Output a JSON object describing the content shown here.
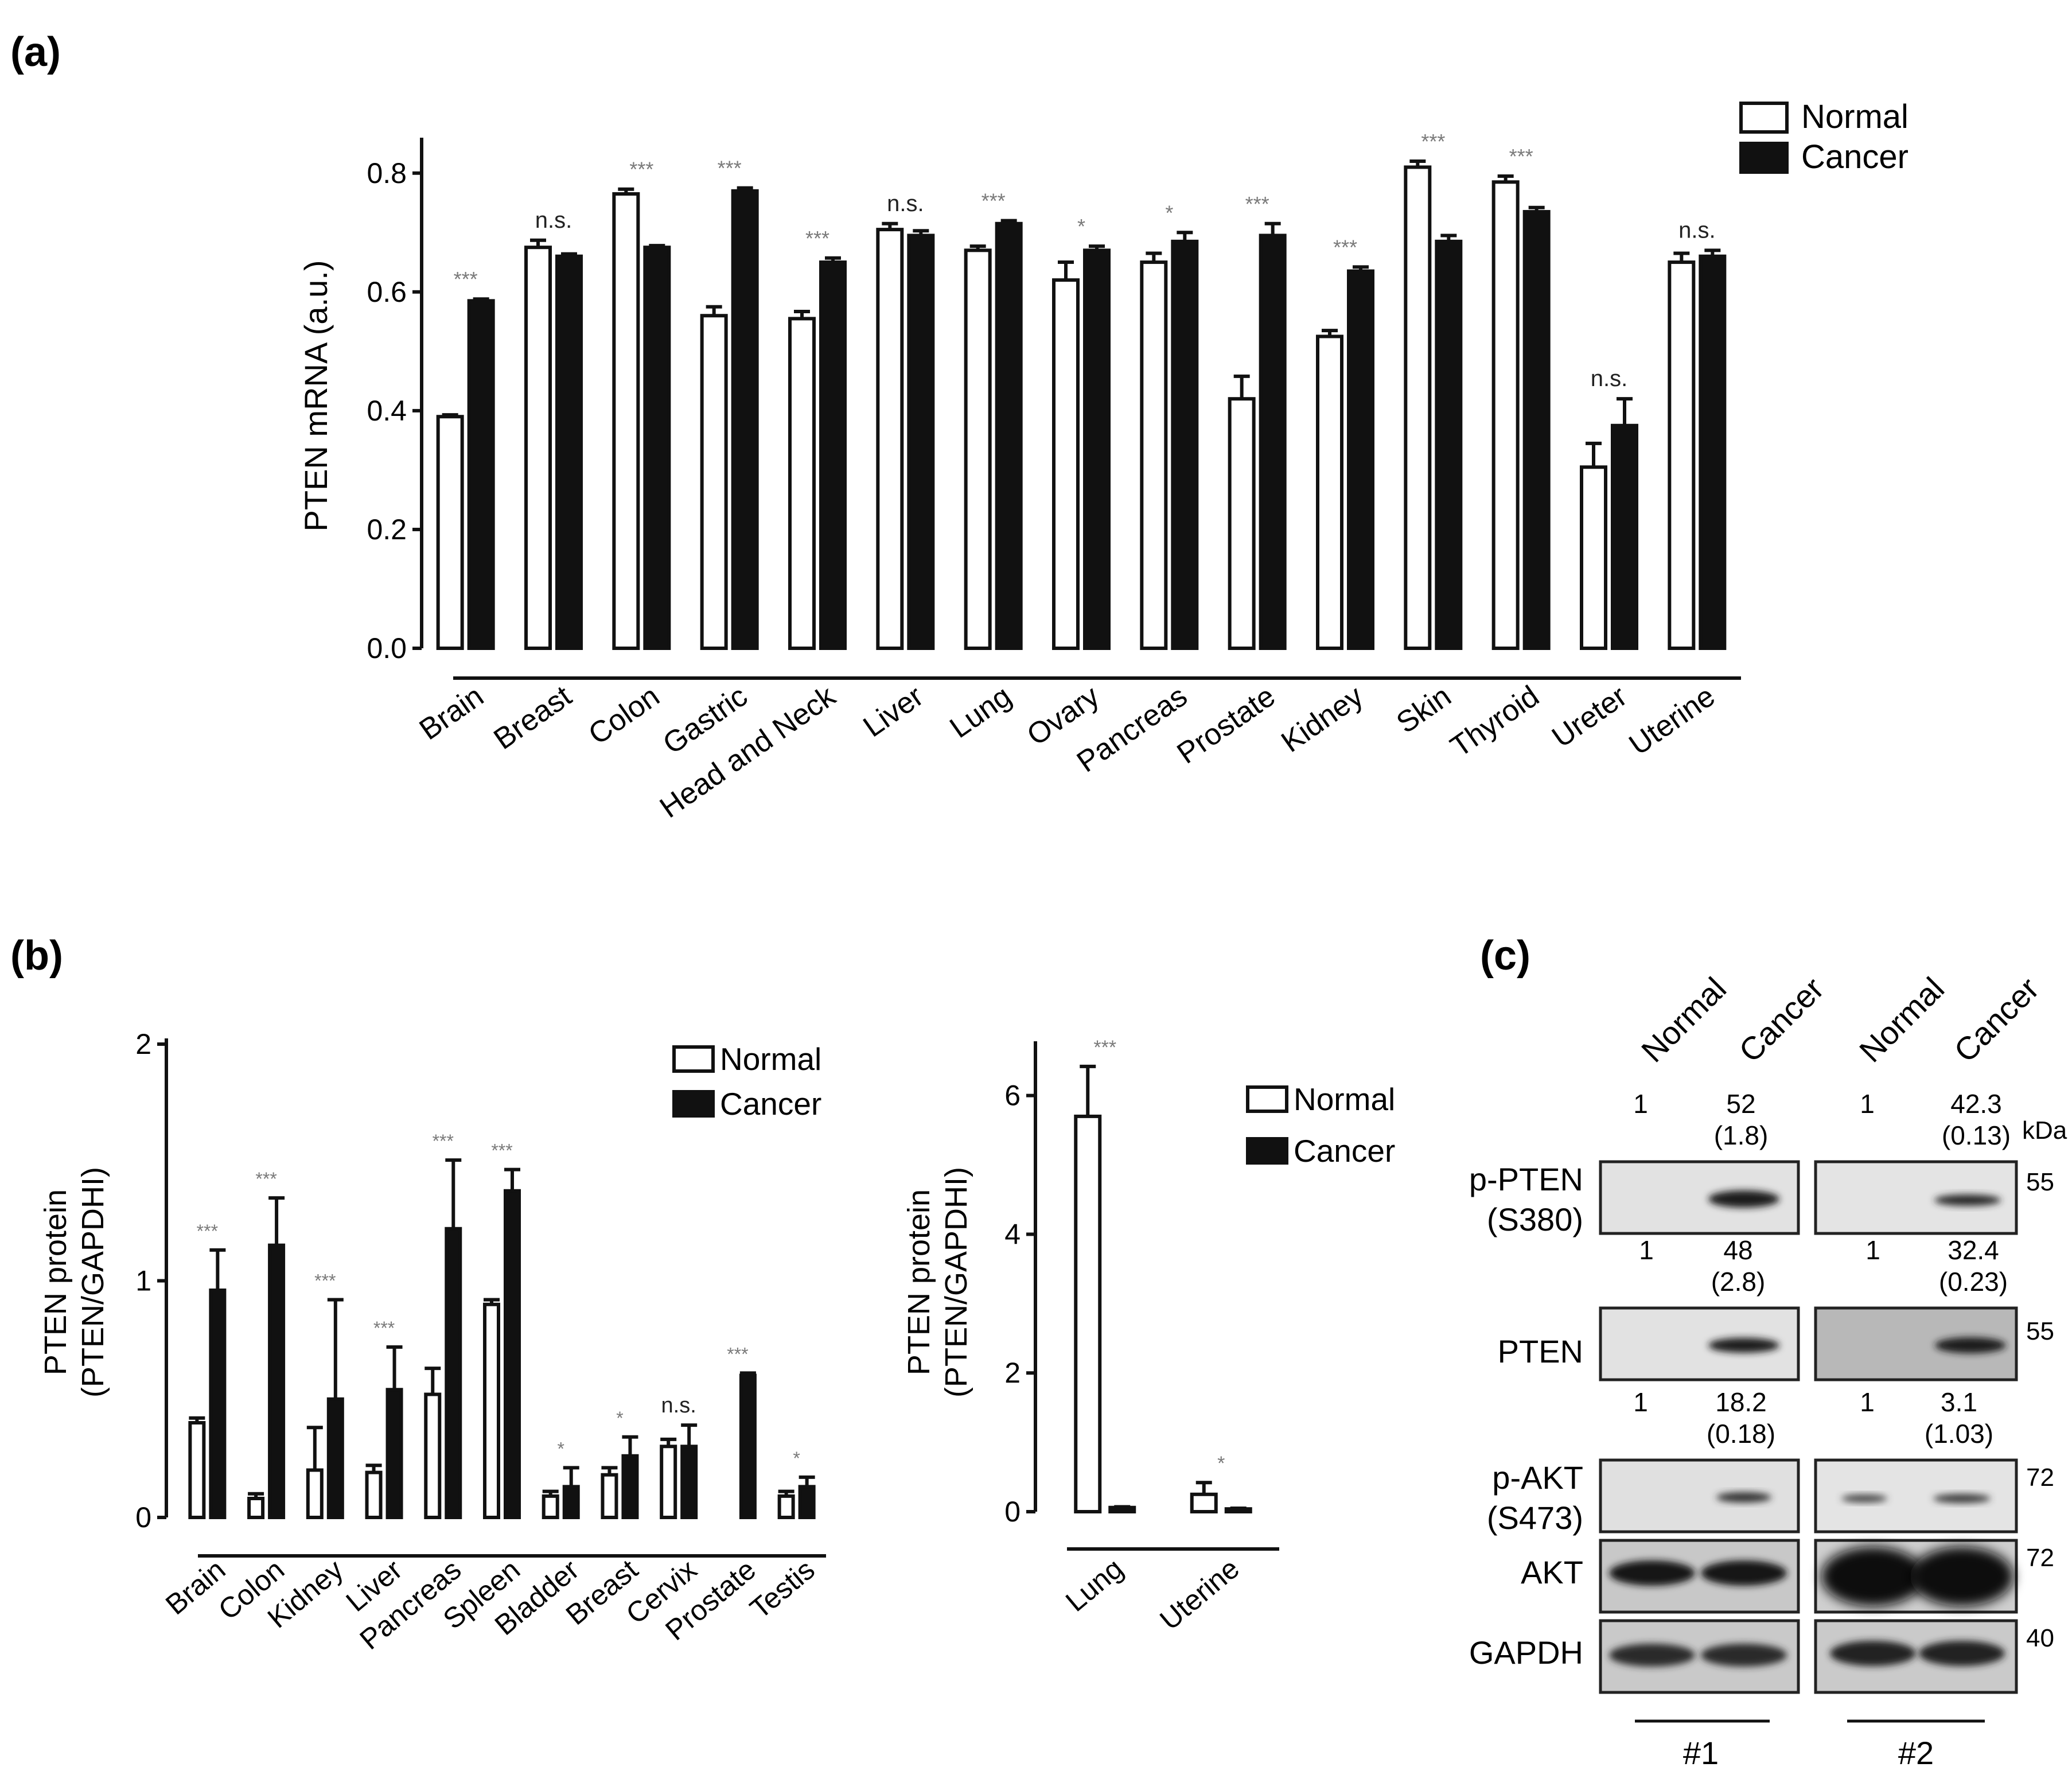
{
  "panel_labels": {
    "a": "(a)",
    "b": "(b)",
    "c": "(c)"
  },
  "legend": {
    "normal": "Normal",
    "cancer": "Cancer"
  },
  "colors": {
    "cancer": "#111111",
    "normal": "#ffffff",
    "stroke": "#111111",
    "sig": "#7a7a7a"
  },
  "chart_data": [
    {
      "id": "a",
      "type": "bar",
      "title": "",
      "xlabel": "",
      "ylabel": "PTEN mRNA (a.u.)",
      "ylim": [
        0,
        0.85
      ],
      "yticks": [
        "0.0",
        "0.2",
        "0.4",
        "0.6",
        "0.8"
      ],
      "ytick_values": [
        0,
        0.2,
        0.4,
        0.6,
        0.8
      ],
      "categories": [
        "Brain",
        "Breast",
        "Colon",
        "Gastric",
        "Head and Neck",
        "Liver",
        "Lung",
        "Ovary",
        "Pancreas",
        "Prostate",
        "Kidney",
        "Skin",
        "Thyroid",
        "Ureter",
        "Uterine"
      ],
      "series": [
        {
          "name": "Normal",
          "values": [
            0.39,
            0.675,
            0.765,
            0.56,
            0.555,
            0.705,
            0.67,
            0.62,
            0.65,
            0.42,
            0.525,
            0.81,
            0.785,
            0.305,
            0.65
          ],
          "errors": [
            0.003,
            0.012,
            0.008,
            0.015,
            0.012,
            0.01,
            0.007,
            0.03,
            0.015,
            0.038,
            0.01,
            0.01,
            0.01,
            0.04,
            0.015
          ]
        },
        {
          "name": "Cancer",
          "values": [
            0.585,
            0.66,
            0.675,
            0.77,
            0.65,
            0.695,
            0.715,
            0.67,
            0.685,
            0.695,
            0.635,
            0.685,
            0.735,
            0.375,
            0.66
          ],
          "errors": [
            0.003,
            0.004,
            0.003,
            0.005,
            0.007,
            0.008,
            0.005,
            0.007,
            0.015,
            0.02,
            0.007,
            0.01,
            0.007,
            0.045,
            0.01
          ]
        }
      ],
      "significance": [
        "***",
        "n.s.",
        "***",
        "***",
        "***",
        "n.s.",
        "***",
        "*",
        "*",
        "***",
        "***",
        "***",
        "***",
        "n.s.",
        "n.s."
      ]
    },
    {
      "id": "b1",
      "type": "bar",
      "title": "",
      "xlabel": "",
      "ylabel": "PTEN protein",
      "ylabel2": "(PTEN/GAPDHI)",
      "ylim": [
        0,
        2
      ],
      "yticks": [
        "0",
        "1",
        "2"
      ],
      "ytick_values": [
        0,
        1,
        2
      ],
      "categories": [
        "Brain",
        "Colon",
        "Kidney",
        "Liver",
        "Pancreas",
        "Spleen",
        "Bladder",
        "Breast",
        "Cervix",
        "Prostate",
        "Testis"
      ],
      "series": [
        {
          "name": "Normal",
          "values": [
            0.4,
            0.08,
            0.2,
            0.19,
            0.52,
            0.9,
            0.09,
            0.18,
            0.3,
            0.0,
            0.09
          ],
          "errors": [
            0.02,
            0.02,
            0.18,
            0.03,
            0.11,
            0.02,
            0.02,
            0.03,
            0.03,
            0.0,
            0.02
          ]
        },
        {
          "name": "Cancer",
          "values": [
            0.96,
            1.15,
            0.5,
            0.54,
            1.22,
            1.38,
            0.13,
            0.26,
            0.3,
            0.6,
            0.13
          ],
          "errors": [
            0.17,
            0.2,
            0.42,
            0.18,
            0.29,
            0.09,
            0.08,
            0.08,
            0.09,
            0.01,
            0.04
          ]
        }
      ],
      "significance": [
        "***",
        "***",
        "***",
        "***",
        "***",
        "***",
        "*",
        "*",
        "n.s.",
        "***",
        "*"
      ]
    },
    {
      "id": "b2",
      "type": "bar",
      "title": "",
      "xlabel": "",
      "ylabel": "PTEN protein",
      "ylabel2": "(PTEN/GAPDHI)",
      "ylim": [
        0,
        6.7
      ],
      "yticks": [
        "0",
        "2",
        "4",
        "6"
      ],
      "ytick_values": [
        0,
        2,
        4,
        6
      ],
      "categories": [
        "Lung",
        "Uterine"
      ],
      "series": [
        {
          "name": "Normal",
          "values": [
            5.7,
            0.25
          ],
          "errors": [
            0.72,
            0.17
          ]
        },
        {
          "name": "Cancer",
          "values": [
            0.06,
            0.04
          ],
          "errors": [
            0.01,
            0.01
          ]
        }
      ],
      "significance": [
        "***",
        "*"
      ]
    }
  ],
  "blot": {
    "columns": [
      "Normal",
      "Cancer",
      "Normal",
      "Cancer"
    ],
    "kda_label": "kDa",
    "rows": [
      {
        "name": "p-PTEN",
        "name2": "(S380)",
        "kda": "55",
        "q1": [
          "1",
          "52",
          "(1.8)"
        ],
        "q2": [
          "1",
          "42.3",
          "(0.13)"
        ]
      },
      {
        "name": "PTEN",
        "name2": "",
        "kda": "55",
        "q1": [
          "1",
          "48",
          "(2.8)"
        ],
        "q2": [
          "1",
          "32.4",
          "(0.23)"
        ]
      },
      {
        "name": "p-AKT",
        "name2": "(S473)",
        "kda": "72",
        "q1": [
          "1",
          "18.2",
          "(0.18)"
        ],
        "q2": [
          "1",
          "3.1",
          "(1.03)"
        ]
      },
      {
        "name": "AKT",
        "name2": "",
        "kda": "72"
      },
      {
        "name": "GAPDH",
        "name2": "",
        "kda": "40"
      }
    ],
    "samples": [
      "#1",
      "#2"
    ]
  }
}
